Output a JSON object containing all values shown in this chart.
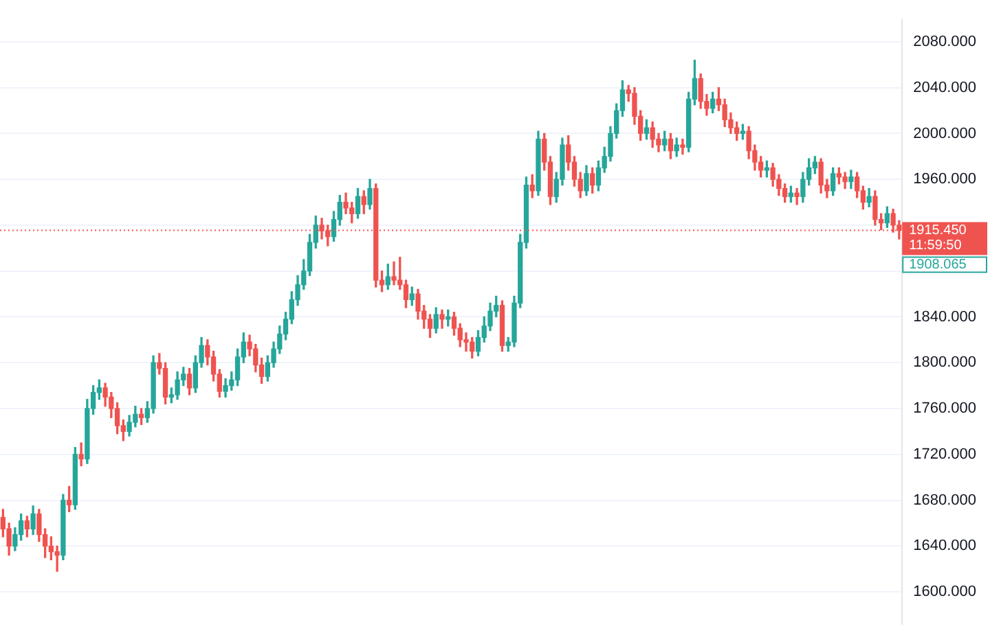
{
  "chart_data": {
    "type": "candlestick",
    "categories": [
      null,
      null,
      null,
      null,
      null,
      null,
      null,
      null,
      null,
      null,
      null,
      null,
      null,
      null,
      null,
      null,
      null,
      null,
      null,
      null,
      null,
      null,
      null,
      null,
      null,
      null,
      null,
      null,
      null,
      null,
      null,
      null,
      null,
      null,
      null,
      null,
      null,
      null,
      null,
      null,
      null,
      null,
      null,
      null,
      null,
      null,
      null,
      null,
      null,
      null,
      null,
      null,
      null,
      null,
      null,
      null,
      null,
      null,
      null,
      null,
      null,
      null,
      null,
      null,
      null,
      null,
      null,
      null,
      null,
      null,
      null,
      null,
      null,
      null,
      null,
      null,
      null,
      null,
      null,
      null,
      null,
      null,
      null,
      null,
      null,
      null,
      null,
      null,
      null,
      null,
      null,
      null,
      null,
      null,
      null,
      null,
      null,
      null,
      null,
      null,
      null,
      null,
      null,
      null,
      null,
      null,
      null,
      null,
      null,
      null,
      null,
      null,
      null,
      null,
      null,
      null,
      null,
      null,
      null,
      null,
      null,
      null,
      null,
      null,
      null,
      null,
      null,
      null,
      null,
      null,
      null,
      null,
      null,
      null,
      null,
      null,
      null,
      null,
      null,
      null,
      null,
      null,
      null,
      null,
      null,
      null,
      null,
      null,
      null,
      null
    ],
    "ohlc": [
      [
        1665,
        1672,
        1648,
        1655
      ],
      [
        1655,
        1660,
        1632,
        1640
      ],
      [
        1640,
        1656,
        1636,
        1650
      ],
      [
        1650,
        1668,
        1645,
        1662
      ],
      [
        1662,
        1666,
        1648,
        1655
      ],
      [
        1655,
        1675,
        1650,
        1668
      ],
      [
        1668,
        1672,
        1644,
        1650
      ],
      [
        1650,
        1655,
        1630,
        1640
      ],
      [
        1640,
        1648,
        1628,
        1635
      ],
      [
        1635,
        1640,
        1618,
        1632
      ],
      [
        1632,
        1685,
        1628,
        1680
      ],
      [
        1680,
        1692,
        1670,
        1676
      ],
      [
        1676,
        1726,
        1672,
        1720
      ],
      [
        1720,
        1730,
        1710,
        1716
      ],
      [
        1716,
        1768,
        1712,
        1760
      ],
      [
        1760,
        1780,
        1755,
        1774
      ],
      [
        1774,
        1785,
        1768,
        1778
      ],
      [
        1778,
        1782,
        1762,
        1770
      ],
      [
        1770,
        1774,
        1752,
        1760
      ],
      [
        1760,
        1765,
        1738,
        1745
      ],
      [
        1745,
        1750,
        1732,
        1740
      ],
      [
        1740,
        1754,
        1736,
        1748
      ],
      [
        1748,
        1762,
        1744,
        1755
      ],
      [
        1755,
        1760,
        1746,
        1752
      ],
      [
        1752,
        1766,
        1748,
        1760
      ],
      [
        1760,
        1806,
        1756,
        1800
      ],
      [
        1800,
        1808,
        1790,
        1795
      ],
      [
        1795,
        1800,
        1764,
        1770
      ],
      [
        1770,
        1778,
        1765,
        1772
      ],
      [
        1772,
        1792,
        1768,
        1785
      ],
      [
        1785,
        1796,
        1780,
        1790
      ],
      [
        1790,
        1795,
        1772,
        1778
      ],
      [
        1778,
        1806,
        1774,
        1800
      ],
      [
        1800,
        1822,
        1796,
        1815
      ],
      [
        1815,
        1820,
        1798,
        1805
      ],
      [
        1805,
        1810,
        1784,
        1790
      ],
      [
        1790,
        1794,
        1770,
        1775
      ],
      [
        1775,
        1786,
        1770,
        1780
      ],
      [
        1780,
        1792,
        1776,
        1785
      ],
      [
        1785,
        1812,
        1780,
        1805
      ],
      [
        1805,
        1826,
        1800,
        1818
      ],
      [
        1818,
        1824,
        1806,
        1812
      ],
      [
        1812,
        1816,
        1792,
        1798
      ],
      [
        1798,
        1804,
        1782,
        1788
      ],
      [
        1788,
        1806,
        1784,
        1800
      ],
      [
        1800,
        1818,
        1796,
        1812
      ],
      [
        1812,
        1832,
        1808,
        1825
      ],
      [
        1825,
        1844,
        1820,
        1838
      ],
      [
        1838,
        1862,
        1834,
        1855
      ],
      [
        1855,
        1876,
        1850,
        1868
      ],
      [
        1868,
        1890,
        1864,
        1880
      ],
      [
        1880,
        1912,
        1876,
        1905
      ],
      [
        1905,
        1928,
        1900,
        1920
      ],
      [
        1920,
        1926,
        1908,
        1915
      ],
      [
        1915,
        1920,
        1902,
        1910
      ],
      [
        1910,
        1932,
        1906,
        1925
      ],
      [
        1925,
        1946,
        1920,
        1940
      ],
      [
        1940,
        1948,
        1930,
        1935
      ],
      [
        1935,
        1940,
        1922,
        1930
      ],
      [
        1930,
        1952,
        1926,
        1945
      ],
      [
        1945,
        1950,
        1930,
        1938
      ],
      [
        1938,
        1960,
        1934,
        1952
      ],
      [
        1952,
        1956,
        1866,
        1872
      ],
      [
        1872,
        1880,
        1862,
        1868
      ],
      [
        1868,
        1886,
        1864,
        1875
      ],
      [
        1875,
        1888,
        1868,
        1872
      ],
      [
        1872,
        1892,
        1864,
        1868
      ],
      [
        1868,
        1872,
        1848,
        1855
      ],
      [
        1855,
        1866,
        1850,
        1860
      ],
      [
        1860,
        1864,
        1838,
        1845
      ],
      [
        1845,
        1850,
        1830,
        1838
      ],
      [
        1838,
        1842,
        1822,
        1830
      ],
      [
        1830,
        1848,
        1826,
        1842
      ],
      [
        1842,
        1846,
        1830,
        1838
      ],
      [
        1838,
        1846,
        1832,
        1840
      ],
      [
        1840,
        1844,
        1824,
        1830
      ],
      [
        1830,
        1834,
        1814,
        1820
      ],
      [
        1820,
        1826,
        1810,
        1818
      ],
      [
        1818,
        1822,
        1804,
        1810
      ],
      [
        1810,
        1828,
        1806,
        1822
      ],
      [
        1822,
        1840,
        1818,
        1832
      ],
      [
        1832,
        1852,
        1828,
        1845
      ],
      [
        1845,
        1858,
        1840,
        1850
      ],
      [
        1850,
        1854,
        1810,
        1815
      ],
      [
        1815,
        1822,
        1810,
        1818
      ],
      [
        1818,
        1858,
        1814,
        1852
      ],
      [
        1852,
        1912,
        1848,
        1905
      ],
      [
        1905,
        1962,
        1900,
        1955
      ],
      [
        1955,
        1964,
        1944,
        1950
      ],
      [
        1950,
        2002,
        1946,
        1995
      ],
      [
        1995,
        2000,
        1968,
        1975
      ],
      [
        1975,
        1980,
        1938,
        1945
      ],
      [
        1945,
        1966,
        1940,
        1960
      ],
      [
        1960,
        1996,
        1955,
        1990
      ],
      [
        1990,
        1998,
        1968,
        1975
      ],
      [
        1975,
        1980,
        1954,
        1960
      ],
      [
        1960,
        1966,
        1944,
        1950
      ],
      [
        1950,
        1972,
        1946,
        1965
      ],
      [
        1965,
        1970,
        1948,
        1955
      ],
      [
        1955,
        1976,
        1950,
        1970
      ],
      [
        1970,
        1988,
        1966,
        1980
      ],
      [
        1980,
        2006,
        1976,
        2000
      ],
      [
        2000,
        2026,
        1996,
        2020
      ],
      [
        2020,
        2046,
        2015,
        2038
      ],
      [
        2038,
        2042,
        2028,
        2035
      ],
      [
        2035,
        2040,
        2008,
        2015
      ],
      [
        2015,
        2020,
        1994,
        2000
      ],
      [
        2000,
        2012,
        1995,
        2005
      ],
      [
        2005,
        2010,
        1988,
        1995
      ],
      [
        1995,
        2000,
        1984,
        1990
      ],
      [
        1990,
        2002,
        1985,
        1995
      ],
      [
        1995,
        2000,
        1978,
        1985
      ],
      [
        1985,
        1996,
        1980,
        1990
      ],
      [
        1990,
        1995,
        1982,
        1988
      ],
      [
        1988,
        2036,
        1984,
        2030
      ],
      [
        2030,
        2064,
        2025,
        2048
      ],
      [
        2048,
        2052,
        2022,
        2028
      ],
      [
        2028,
        2034,
        2016,
        2022
      ],
      [
        2022,
        2036,
        2018,
        2030
      ],
      [
        2030,
        2040,
        2020,
        2025
      ],
      [
        2025,
        2030,
        2006,
        2012
      ],
      [
        2012,
        2018,
        2000,
        2005
      ],
      [
        2005,
        2010,
        1994,
        2000
      ],
      [
        2000,
        2008,
        1995,
        2002
      ],
      [
        2002,
        2006,
        1978,
        1985
      ],
      [
        1985,
        1990,
        1968,
        1975
      ],
      [
        1975,
        1980,
        1962,
        1968
      ],
      [
        1968,
        1976,
        1962,
        1970
      ],
      [
        1970,
        1974,
        1954,
        1960
      ],
      [
        1960,
        1964,
        1946,
        1952
      ],
      [
        1952,
        1956,
        1940,
        1945
      ],
      [
        1945,
        1954,
        1940,
        1948
      ],
      [
        1948,
        1952,
        1938,
        1945
      ],
      [
        1945,
        1966,
        1940,
        1960
      ],
      [
        1960,
        1978,
        1955,
        1970
      ],
      [
        1970,
        1980,
        1965,
        1975
      ],
      [
        1975,
        1978,
        1948,
        1955
      ],
      [
        1955,
        1960,
        1944,
        1950
      ],
      [
        1950,
        1970,
        1946,
        1965
      ],
      [
        1965,
        1970,
        1956,
        1962
      ],
      [
        1962,
        1966,
        1952,
        1958
      ],
      [
        1958,
        1968,
        1952,
        1962
      ],
      [
        1962,
        1966,
        1944,
        1950
      ],
      [
        1950,
        1954,
        1934,
        1940
      ],
      [
        1940,
        1952,
        1936,
        1945
      ],
      [
        1945,
        1950,
        1920,
        1925
      ],
      [
        1925,
        1930,
        1916,
        1922
      ],
      [
        1922,
        1936,
        1918,
        1930
      ],
      [
        1930,
        1934,
        1914,
        1920
      ],
      [
        1920,
        1924,
        1908,
        1915.45
      ]
    ],
    "colors": [
      "#ef5350",
      "#ef5350",
      "#26a69a",
      "#26a69a",
      "#ef5350",
      "#26a69a",
      "#ef5350",
      "#ef5350",
      "#ef5350",
      "#ef5350",
      "#26a69a",
      "#ef5350",
      "#26a69a",
      "#ef5350",
      "#26a69a",
      "#26a69a",
      "#26a69a",
      "#ef5350",
      "#ef5350",
      "#ef5350",
      "#ef5350",
      "#26a69a",
      "#26a69a",
      "#ef5350",
      "#26a69a",
      "#26a69a",
      "#ef5350",
      "#ef5350",
      "#26a69a",
      "#26a69a",
      "#26a69a",
      "#ef5350",
      "#26a69a",
      "#26a69a",
      "#ef5350",
      "#ef5350",
      "#ef5350",
      "#26a69a",
      "#26a69a",
      "#26a69a",
      "#26a69a",
      "#ef5350",
      "#ef5350",
      "#ef5350",
      "#26a69a",
      "#26a69a",
      "#26a69a",
      "#26a69a",
      "#26a69a",
      "#26a69a",
      "#26a69a",
      "#26a69a",
      "#26a69a",
      "#ef5350",
      "#ef5350",
      "#26a69a",
      "#26a69a",
      "#ef5350",
      "#ef5350",
      "#26a69a",
      "#ef5350",
      "#26a69a",
      "#ef5350",
      "#ef5350",
      "#26a69a",
      "#ef5350",
      "#ef5350",
      "#ef5350",
      "#26a69a",
      "#ef5350",
      "#ef5350",
      "#ef5350",
      "#26a69a",
      "#ef5350",
      "#26a69a",
      "#ef5350",
      "#ef5350",
      "#ef5350",
      "#ef5350",
      "#26a69a",
      "#26a69a",
      "#26a69a",
      "#26a69a",
      "#ef5350",
      "#26a69a",
      "#26a69a",
      "#26a69a",
      "#26a69a",
      "#ef5350",
      "#26a69a",
      "#ef5350",
      "#ef5350",
      "#26a69a",
      "#26a69a",
      "#ef5350",
      "#ef5350",
      "#ef5350",
      "#26a69a",
      "#ef5350",
      "#26a69a",
      "#26a69a",
      "#26a69a",
      "#26a69a",
      "#26a69a",
      "#ef5350",
      "#ef5350",
      "#ef5350",
      "#26a69a",
      "#ef5350",
      "#ef5350",
      "#26a69a",
      "#ef5350",
      "#26a69a",
      "#ef5350",
      "#26a69a",
      "#26a69a",
      "#ef5350",
      "#ef5350",
      "#26a69a",
      "#ef5350",
      "#ef5350",
      "#ef5350",
      "#ef5350",
      "#26a69a",
      "#ef5350",
      "#ef5350",
      "#ef5350",
      "#26a69a",
      "#ef5350",
      "#ef5350",
      "#ef5350",
      "#26a69a",
      "#ef5350",
      "#26a69a",
      "#26a69a",
      "#26a69a",
      "#ef5350",
      "#ef5350",
      "#26a69a",
      "#ef5350",
      "#ef5350",
      "#26a69a",
      "#ef5350",
      "#ef5350",
      "#26a69a",
      "#ef5350",
      "#ef5350",
      "#26a69a",
      "#ef5350",
      "#ef5350"
    ],
    "ylim": [
      1572,
      2099
    ],
    "yticks": [
      {
        "value": 1600,
        "label": "1600.000"
      },
      {
        "value": 1640,
        "label": "1640.000"
      },
      {
        "value": 1680,
        "label": "1680.000"
      },
      {
        "value": 1720,
        "label": "1720.000"
      },
      {
        "value": 1760,
        "label": "1760.000"
      },
      {
        "value": 1800,
        "label": "1800.000"
      },
      {
        "value": 1840,
        "label": "1840.000"
      },
      {
        "value": 1880,
        "label": null
      },
      {
        "value": 1920,
        "label": null
      },
      {
        "value": 1960,
        "label": "1960.000"
      },
      {
        "value": 2000,
        "label": "2000.000"
      },
      {
        "value": 2040,
        "label": "2040.000"
      },
      {
        "value": 2080,
        "label": "2080.000"
      }
    ],
    "ref_lines": [
      {
        "axis": "y",
        "value": 1915.45,
        "label": "1915.450",
        "color": "#ef5350",
        "line_style": "dotted"
      }
    ],
    "annotations": [
      "11:59:50",
      "1908.065"
    ],
    "grid": "y",
    "tick_labels": "y"
  }
}
